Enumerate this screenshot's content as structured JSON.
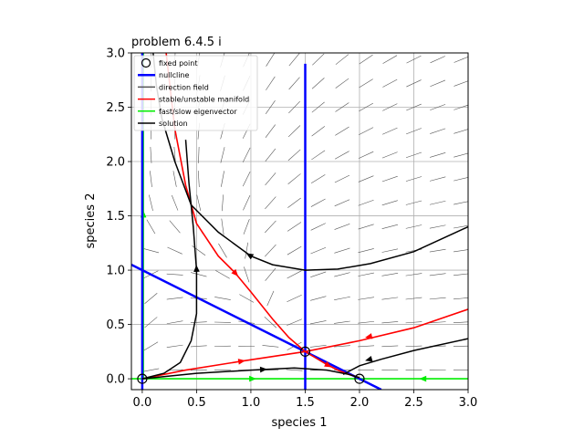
{
  "chart_data": {
    "type": "line",
    "title": "problem 6.4.5 i",
    "xlabel": "species 1",
    "ylabel": "species 2",
    "xlim": [
      -0.1,
      3.0
    ],
    "ylim": [
      -0.1,
      3.0
    ],
    "xticks": [
      "0.0",
      "0.5",
      "1.0",
      "1.5",
      "2.0",
      "2.5",
      "3.0"
    ],
    "yticks": [
      "0.0",
      "0.5",
      "1.0",
      "1.5",
      "2.0",
      "2.5",
      "3.0"
    ],
    "grid": true,
    "legend_position": "top-left",
    "legend": [
      {
        "label": "fixed point",
        "kind": "marker",
        "color": "#000000"
      },
      {
        "label": "nullcline",
        "kind": "line",
        "color": "#0000ff"
      },
      {
        "label": "direction field",
        "kind": "line",
        "color": "#555555"
      },
      {
        "label": "stable/unstable manifold",
        "kind": "line",
        "color": "#ff0000"
      },
      {
        "label": "fast/slow eigenvector",
        "kind": "line",
        "color": "#00ee00"
      },
      {
        "label": "solution",
        "kind": "line",
        "color": "#000000"
      }
    ],
    "fixed_points": [
      [
        0,
        0
      ],
      [
        1.5,
        0.25
      ],
      [
        2,
        0
      ]
    ],
    "nullclines": [
      {
        "points": [
          [
            -0.1,
            1.05
          ],
          [
            2.2,
            -0.1
          ]
        ]
      },
      {
        "points": [
          [
            1.5,
            -0.1
          ],
          [
            1.5,
            2.9
          ]
        ]
      },
      {
        "points": [
          [
            0,
            -0.1
          ],
          [
            0,
            3.0
          ]
        ]
      }
    ],
    "eigenvectors": [
      {
        "points": [
          [
            -0.1,
            0
          ],
          [
            3.0,
            0
          ]
        ],
        "arrows": [
          {
            "at": [
              1.0,
              0
            ],
            "dir": 1
          },
          {
            "at": [
              2.6,
              0
            ],
            "dir": -1
          }
        ]
      },
      {
        "points": [
          [
            0.01,
            0
          ],
          [
            0.01,
            3.0
          ]
        ],
        "arrows": [
          {
            "at": [
              0.01,
              1.5
            ],
            "dir": 1
          }
        ]
      }
    ],
    "manifolds": [
      {
        "points": [
          [
            0.22,
            3.0
          ],
          [
            0.3,
            2.3
          ],
          [
            0.4,
            1.78
          ],
          [
            0.5,
            1.43
          ],
          [
            0.7,
            1.13
          ],
          [
            0.85,
            0.98
          ],
          [
            1.0,
            0.8
          ],
          [
            1.2,
            0.55
          ],
          [
            1.35,
            0.38
          ],
          [
            1.5,
            0.25
          ],
          [
            1.6,
            0.19
          ],
          [
            1.7,
            0.13
          ],
          [
            1.8,
            0.08
          ],
          [
            1.9,
            0.04
          ],
          [
            2.0,
            0.01
          ]
        ],
        "arrows": [
          {
            "at": [
              0.85,
              0.98
            ],
            "dir": 1
          },
          {
            "at": [
              1.7,
              0.13
            ],
            "dir": 1
          }
        ]
      },
      {
        "points": [
          [
            0.0,
            0.0
          ],
          [
            0.4,
            0.08
          ],
          [
            0.9,
            0.16
          ],
          [
            1.5,
            0.25
          ],
          [
            2.0,
            0.35
          ],
          [
            2.5,
            0.47
          ],
          [
            3.0,
            0.64
          ]
        ],
        "arrows": [
          {
            "at": [
              0.9,
              0.16
            ],
            "dir": 1
          },
          {
            "at": [
              2.1,
              0.39
            ],
            "dir": -1
          }
        ]
      }
    ],
    "solutions": [
      {
        "points": [
          [
            0.1,
            3.0
          ],
          [
            0.13,
            2.7
          ],
          [
            0.18,
            2.4
          ],
          [
            0.3,
            2.0
          ],
          [
            0.45,
            1.6
          ],
          [
            0.7,
            1.35
          ],
          [
            1.0,
            1.13
          ],
          [
            1.2,
            1.05
          ],
          [
            1.5,
            1.0
          ],
          [
            1.8,
            1.01
          ],
          [
            2.1,
            1.06
          ],
          [
            2.5,
            1.17
          ],
          [
            3.0,
            1.4
          ]
        ],
        "arrows": [
          {
            "at": [
              1.0,
              1.13
            ],
            "dir": -1
          }
        ]
      },
      {
        "points": [
          [
            0.0,
            0.0
          ],
          [
            0.2,
            0.05
          ],
          [
            0.35,
            0.15
          ],
          [
            0.45,
            0.35
          ],
          [
            0.5,
            0.6
          ],
          [
            0.5,
            1.0
          ],
          [
            0.47,
            1.4
          ],
          [
            0.43,
            1.8
          ],
          [
            0.4,
            2.2
          ]
        ],
        "arrows": [
          {
            "at": [
              0.5,
              1.0
            ],
            "dir": 1
          }
        ]
      },
      {
        "points": [
          [
            0.0,
            0.0
          ],
          [
            0.5,
            0.05
          ],
          [
            1.0,
            0.08
          ],
          [
            1.4,
            0.1
          ],
          [
            1.7,
            0.08
          ],
          [
            1.9,
            0.04
          ],
          [
            2.0,
            0.01
          ]
        ],
        "arrows": [
          {
            "at": [
              1.1,
              0.085
            ],
            "dir": 1
          }
        ]
      },
      {
        "points": [
          [
            1.85,
            0.04
          ],
          [
            2.0,
            0.12
          ],
          [
            2.2,
            0.18
          ],
          [
            2.5,
            0.26
          ],
          [
            3.0,
            0.37
          ]
        ],
        "arrows": [
          {
            "at": [
              2.1,
              0.18
            ],
            "dir": -1
          }
        ]
      }
    ],
    "colors": {
      "nullcline": "#0000ff",
      "manifold": "#ff0000",
      "eigenvector": "#00ee00",
      "solution": "#000000",
      "field": "#555555",
      "grid": "#b0b0b0"
    }
  }
}
